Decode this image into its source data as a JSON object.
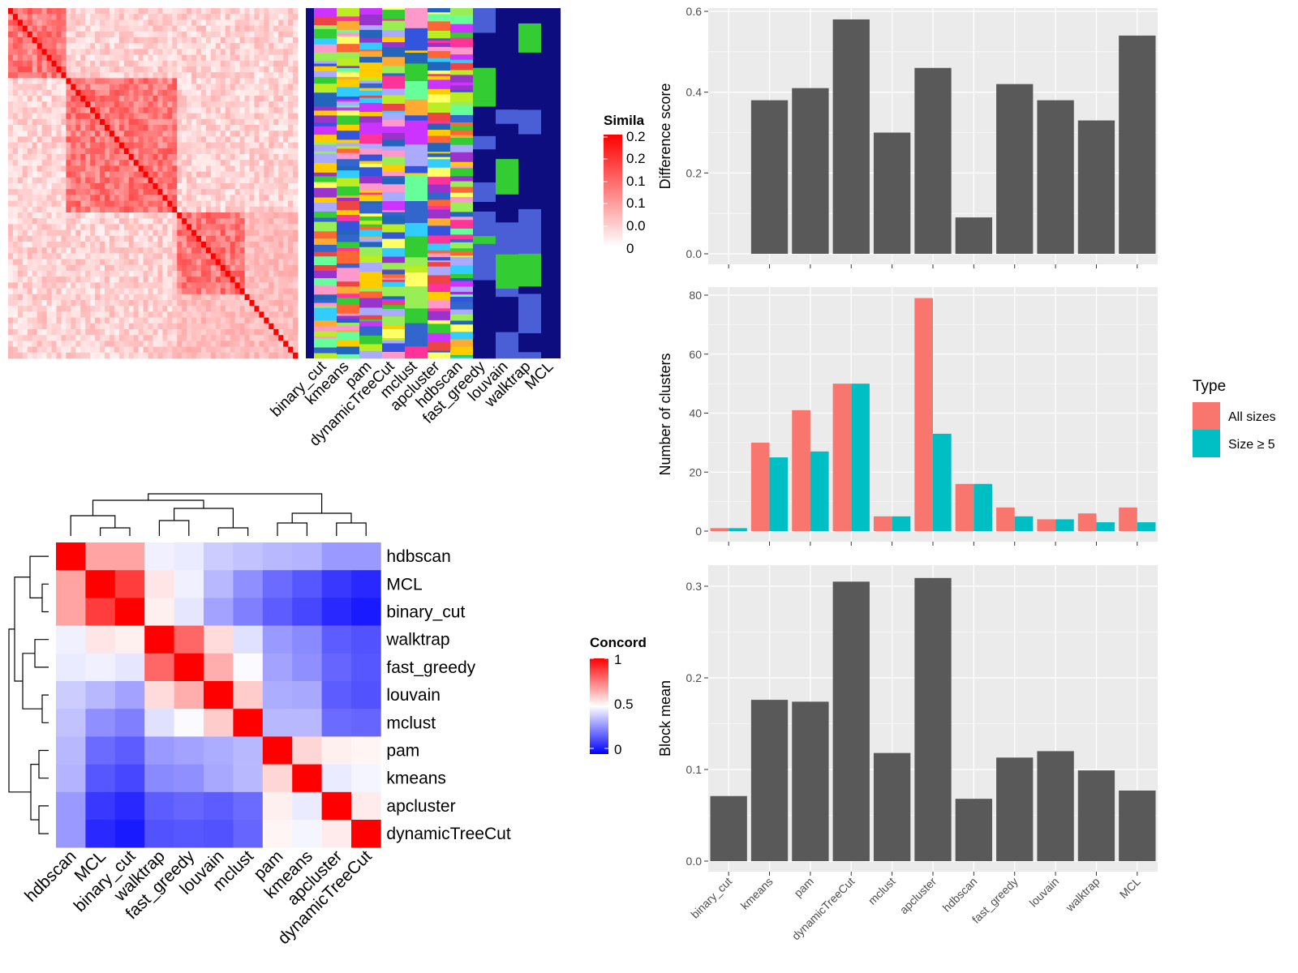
{
  "colors": {
    "bar_gray": "#595959",
    "panel_bg": "#ebebeb",
    "grid": "#ffffff",
    "type_all": "#f8766d",
    "type_size5": "#00bfc4",
    "sim_high": "#ff0000",
    "sim_low": "#ffffff",
    "conc_high": "#ff0000",
    "conc_mid": "#ffffff",
    "conc_low": "#0000ff",
    "strip_bg": "#0d0d80"
  },
  "similarity_heatmap": {
    "legend_title": "Simila",
    "legend_ticks": [
      "0.2",
      "0.2",
      "0.1",
      "0.1",
      "0.0",
      "0"
    ],
    "methods": [
      "binary_cut",
      "kmeans",
      "pam",
      "dynamicTreeCut",
      "mclust",
      "apcluster",
      "hdbscan",
      "fast_greedy",
      "louvain",
      "walktrap",
      "MCL"
    ]
  },
  "concordance_heatmap": {
    "legend_title": "Concord",
    "legend_ticks": [
      "1",
      "0.5",
      "0"
    ],
    "labels": [
      "hdbscan",
      "MCL",
      "binary_cut",
      "walktrap",
      "fast_greedy",
      "louvain",
      "mclust",
      "pam",
      "kmeans",
      "apcluster",
      "dynamicTreeCut"
    ],
    "matrix": [
      [
        1.0,
        0.68,
        0.68,
        0.47,
        0.46,
        0.4,
        0.38,
        0.36,
        0.35,
        0.3,
        0.3
      ],
      [
        0.68,
        1.0,
        0.88,
        0.55,
        0.47,
        0.36,
        0.28,
        0.21,
        0.17,
        0.11,
        0.08
      ],
      [
        0.68,
        0.88,
        1.0,
        0.53,
        0.45,
        0.32,
        0.25,
        0.18,
        0.14,
        0.08,
        0.05
      ],
      [
        0.47,
        0.55,
        0.53,
        1.0,
        0.8,
        0.57,
        0.44,
        0.3,
        0.27,
        0.18,
        0.16
      ],
      [
        0.46,
        0.47,
        0.45,
        0.8,
        1.0,
        0.66,
        0.49,
        0.32,
        0.28,
        0.2,
        0.17
      ],
      [
        0.4,
        0.36,
        0.32,
        0.57,
        0.66,
        1.0,
        0.6,
        0.34,
        0.33,
        0.18,
        0.16
      ],
      [
        0.38,
        0.28,
        0.25,
        0.44,
        0.49,
        0.6,
        1.0,
        0.36,
        0.36,
        0.21,
        0.2
      ],
      [
        0.36,
        0.21,
        0.18,
        0.3,
        0.32,
        0.34,
        0.36,
        1.0,
        0.58,
        0.53,
        0.52
      ],
      [
        0.35,
        0.17,
        0.14,
        0.27,
        0.28,
        0.33,
        0.36,
        0.58,
        1.0,
        0.46,
        0.48
      ],
      [
        0.3,
        0.11,
        0.08,
        0.18,
        0.2,
        0.18,
        0.21,
        0.53,
        0.46,
        1.0,
        0.54
      ],
      [
        0.3,
        0.08,
        0.05,
        0.16,
        0.17,
        0.16,
        0.2,
        0.52,
        0.48,
        0.54,
        1.0
      ]
    ]
  },
  "chart_data": [
    {
      "type": "bar",
      "categories": [
        "binary_cut",
        "kmeans",
        "pam",
        "dynamicTreeCut",
        "mclust",
        "apcluster",
        "hdbscan",
        "fast_greedy",
        "louvain",
        "walktrap",
        "MCL"
      ],
      "values": [
        0.0,
        0.38,
        0.41,
        0.58,
        0.3,
        0.46,
        0.09,
        0.42,
        0.38,
        0.33,
        0.54
      ],
      "ylabel": "Difference score",
      "ylim": [
        0,
        0.6
      ],
      "yticks": [
        "0.0",
        "0.2",
        "0.4",
        "0.6"
      ],
      "grid": true
    },
    {
      "type": "bar",
      "categories": [
        "binary_cut",
        "kmeans",
        "pam",
        "dynamicTreeCut",
        "mclust",
        "apcluster",
        "hdbscan",
        "fast_greedy",
        "louvain",
        "walktrap",
        "MCL"
      ],
      "series": [
        {
          "name": "All sizes",
          "values": [
            1,
            30,
            41,
            50,
            5,
            79,
            16,
            8,
            4,
            6,
            8
          ]
        },
        {
          "name": "Size ≥ 5",
          "values": [
            1,
            25,
            27,
            50,
            5,
            33,
            16,
            5,
            4,
            3,
            3
          ]
        }
      ],
      "ylabel": "Number of clusters",
      "ylim": [
        0,
        83
      ],
      "yticks": [
        "0",
        "20",
        "40",
        "60",
        "80"
      ],
      "legend_title": "Type",
      "legend_position": "right",
      "grid": true
    },
    {
      "type": "bar",
      "categories": [
        "binary_cut",
        "kmeans",
        "pam",
        "dynamicTreeCut",
        "mclust",
        "apcluster",
        "hdbscan",
        "fast_greedy",
        "louvain",
        "walktrap",
        "MCL"
      ],
      "values": [
        0.071,
        0.176,
        0.174,
        0.305,
        0.118,
        0.309,
        0.068,
        0.113,
        0.12,
        0.099,
        0.077
      ],
      "ylabel": "Block mean",
      "ylim": [
        0,
        0.3
      ],
      "yticks": [
        "0.0",
        "0.1",
        "0.2",
        "0.3"
      ],
      "grid": true
    }
  ]
}
